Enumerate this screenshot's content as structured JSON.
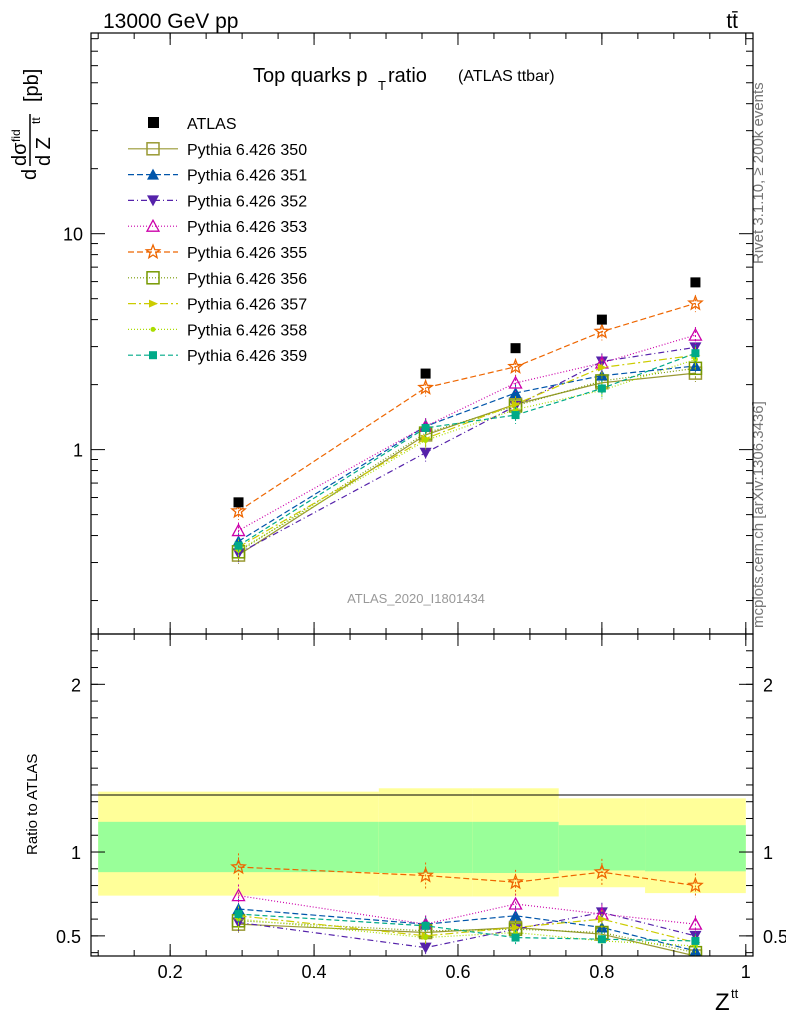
{
  "header": {
    "energy": "13000 GeV pp",
    "process": "tt̄"
  },
  "side_texts": {
    "rivet": "Rivet 3.1.10, ≥ 200k events",
    "mcplots": "mcplots.cern.ch [arXiv:1306.3436]"
  },
  "watermark": "ATLAS_2020_I1801434",
  "colors": {
    "atlas": "#000000",
    "band_inner": "#99ff99",
    "band_outer": "#ffff99"
  },
  "chart_data": {
    "type": "scatter",
    "title_main": "Top quarks p",
    "title_sub": "T",
    "title_rest": " ratio",
    "title_note": "(ATLAS ttbar)",
    "ylabel": {
      "d": "d",
      "dsigma": "dσ",
      "fid": "fid",
      "dZ": "d Z",
      "tt": "tt",
      "unit": "[pb]"
    },
    "xlabel": {
      "base": "Z",
      "sup": "tt"
    },
    "ratio_ylabel": "Ratio to ATLAS",
    "xlim": [
      0.09,
      1.01
    ],
    "ylim_log": [
      0.14,
      85
    ],
    "ratio_ylim": [
      0.38,
      2.3
    ],
    "x_ticks": [
      "0.2",
      "0.4",
      "0.6",
      "0.8",
      "1"
    ],
    "x_tick_values": [
      0.2,
      0.4,
      0.6,
      0.8,
      1.0
    ],
    "y_ticks": [
      "1",
      "10"
    ],
    "y_tick_values": [
      1,
      10
    ],
    "ratio_y_ticks": [
      "0.5",
      "1",
      "2"
    ],
    "ratio_y_tick_values": [
      0.5,
      1,
      2
    ],
    "x": [
      0.295,
      0.555,
      0.68,
      0.8,
      0.93
    ],
    "atlas": {
      "name": "ATLAS",
      "values": [
        0.57,
        2.25,
        2.95,
        4.0,
        5.95
      ]
    },
    "bands": [
      {
        "x_range": [
          0.1,
          0.49
        ],
        "inner": [
          0.88,
          1.18
        ],
        "outer": [
          0.74,
          1.36
        ]
      },
      {
        "x_range": [
          0.49,
          0.62
        ],
        "inner": [
          0.875,
          1.18
        ],
        "outer": [
          0.735,
          1.38
        ]
      },
      {
        "x_range": [
          0.62,
          0.74
        ],
        "inner": [
          0.875,
          1.18
        ],
        "outer": [
          0.735,
          1.38
        ]
      },
      {
        "x_range": [
          0.74,
          0.86
        ],
        "inner": [
          0.89,
          1.16
        ],
        "outer": [
          0.79,
          1.32
        ]
      },
      {
        "x_range": [
          0.86,
          1.0
        ],
        "inner": [
          0.885,
          1.16
        ],
        "outer": [
          0.755,
          1.32
        ]
      }
    ],
    "series": [
      {
        "name": "Pythia 6.426 350",
        "color": "#999933",
        "dash": "",
        "marker": "square-open",
        "ratio": [
          0.57,
          0.52,
          0.55,
          0.51,
          0.38
        ]
      },
      {
        "name": "Pythia 6.426 351",
        "color": "#0055aa",
        "dash": "6,3",
        "marker": "triangle-up",
        "ratio": [
          0.66,
          0.57,
          0.62,
          0.55,
          0.41
        ]
      },
      {
        "name": "Pythia 6.426 352",
        "color": "#5522aa",
        "dash": "6,3,1,3",
        "marker": "triangle-down",
        "ratio": [
          0.58,
          0.43,
          0.54,
          0.64,
          0.5
        ]
      },
      {
        "name": "Pythia 6.426 353",
        "color": "#cc00aa",
        "dash": "1,2",
        "marker": "triangle-open",
        "ratio": [
          0.74,
          0.57,
          0.69,
          0.63,
          0.57
        ]
      },
      {
        "name": "Pythia 6.426 355",
        "color": "#ee6600",
        "dash": "6,3",
        "marker": "star-open",
        "ratio": [
          0.91,
          0.86,
          0.82,
          0.88,
          0.8
        ]
      },
      {
        "name": "Pythia 6.426 356",
        "color": "#779900",
        "dash": "1,2",
        "marker": "square-open",
        "ratio": [
          0.59,
          0.53,
          0.54,
          0.52,
          0.4
        ]
      },
      {
        "name": "Pythia 6.426 357",
        "color": "#cccc00",
        "dash": "8,3,2,3",
        "marker": "triangle-right",
        "ratio": [
          0.62,
          0.5,
          0.55,
          0.6,
          0.46
        ]
      },
      {
        "name": "Pythia 6.426 358",
        "color": "#aadd00",
        "dash": "1,2",
        "marker": "dot",
        "ratio": [
          0.6,
          0.49,
          0.52,
          0.47,
          0.44
        ]
      },
      {
        "name": "Pythia 6.426 359",
        "color": "#00aa88",
        "dash": "5,3",
        "marker": "square-filled",
        "ratio": [
          0.63,
          0.56,
          0.49,
          0.48,
          0.47
        ]
      }
    ]
  }
}
